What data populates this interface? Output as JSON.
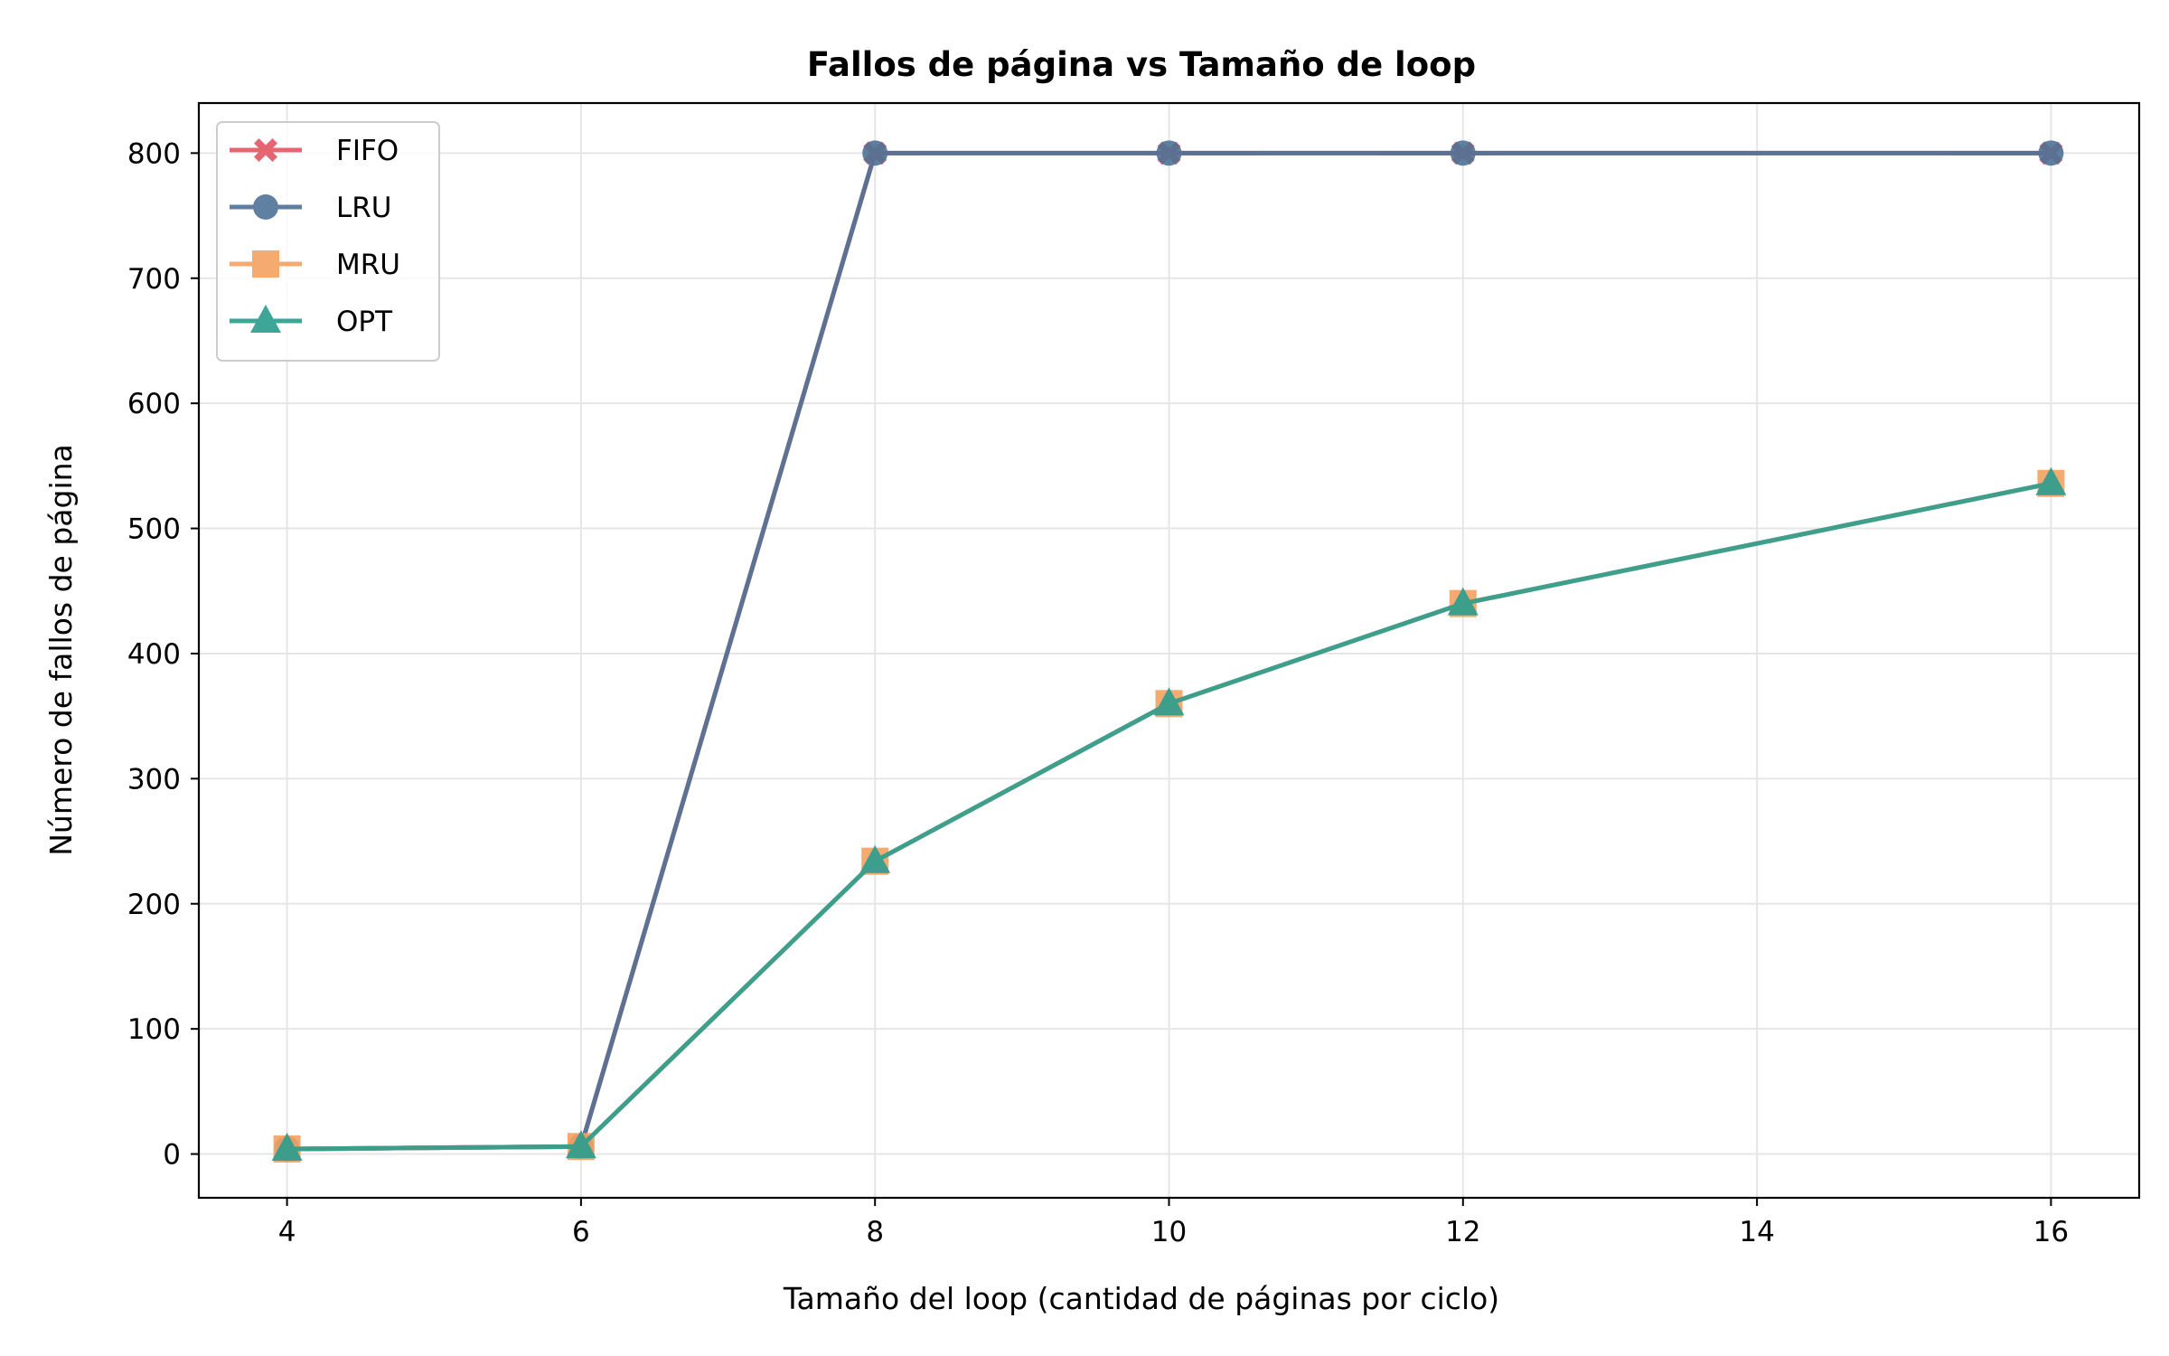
{
  "chart_data": {
    "type": "line",
    "title": "Fallos de página vs Tamaño de loop",
    "xlabel": "Tamaño del loop (cantidad de páginas por ciclo)",
    "ylabel": "Número de fallos de página",
    "x": [
      4,
      6,
      8,
      10,
      12,
      16
    ],
    "xlim": [
      3.4,
      16.6
    ],
    "ylim": [
      -35,
      840
    ],
    "xticks": [
      4,
      6,
      8,
      10,
      12,
      14,
      16
    ],
    "yticks": [
      0,
      100,
      200,
      300,
      400,
      500,
      600,
      700,
      800
    ],
    "grid": true,
    "legend_position": "top-left",
    "series": [
      {
        "name": "FIFO",
        "values": [
          4,
          6,
          800,
          800,
          800,
          800
        ],
        "color": "#e45563",
        "marker": "x-filled"
      },
      {
        "name": "LRU",
        "values": [
          4,
          6,
          800,
          800,
          800,
          800
        ],
        "color": "#4e7396",
        "marker": "circle"
      },
      {
        "name": "MRU",
        "values": [
          4,
          6,
          234,
          360,
          440,
          536
        ],
        "color": "#f4a261",
        "marker": "square"
      },
      {
        "name": "OPT",
        "values": [
          4,
          6,
          234,
          360,
          440,
          536
        ],
        "color": "#2a9d8f",
        "marker": "triangle"
      }
    ]
  }
}
